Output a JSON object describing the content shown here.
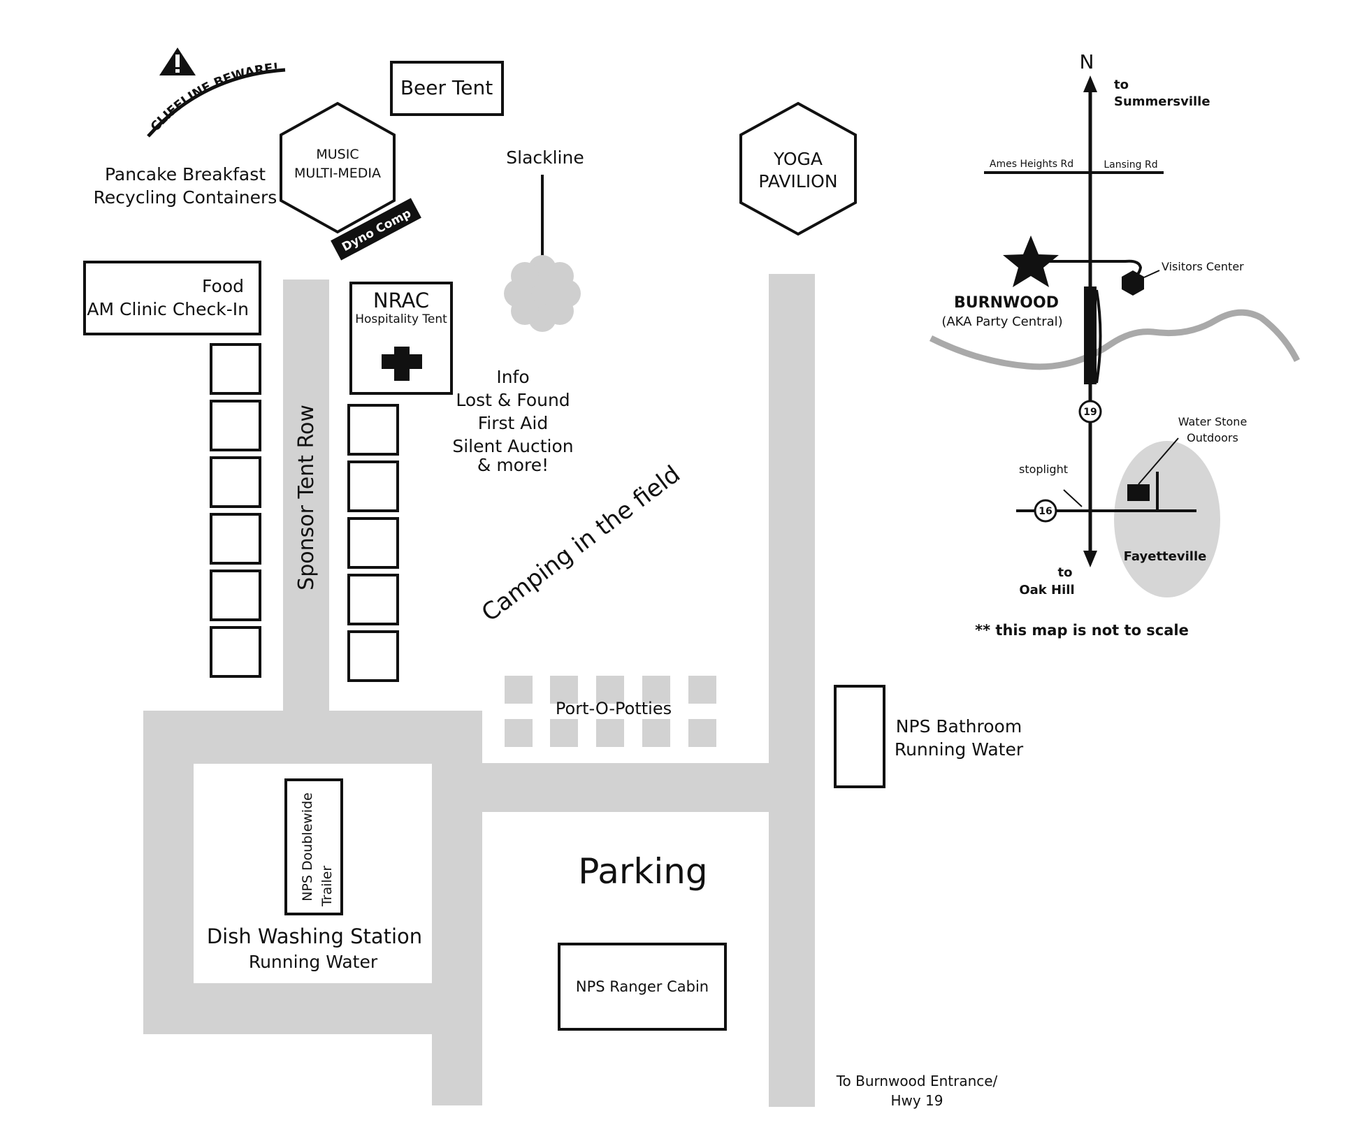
{
  "labels": {
    "cliffline": "CLIFFLINE BEWARE!",
    "beer_tent": "Beer Tent",
    "music_line1": "MUSIC",
    "music_line2": "MULTI-MEDIA",
    "dyno_comp": "Dyno Comp",
    "pancake": "Pancake Breakfast",
    "recycling": "Recycling Containers",
    "slackline": "Slackline",
    "yoga_line1": "YOGA",
    "yoga_line2": "PAVILION",
    "food": "Food",
    "am_clinic": "AM Clinic Check-In",
    "nrac": "NRAC",
    "hospitality": "Hospitality Tent",
    "info": "Info",
    "lost_found": "Lost & Found",
    "first_aid": "First Aid",
    "silent_auction": "Silent Auction",
    "and_more": "& more!",
    "sponsor_row": "Sponsor Tent Row",
    "camping": "Camping in the field",
    "port_o_potties": "Port-O-Potties",
    "nps_bathroom": "NPS Bathroom",
    "running_water_1": "Running Water",
    "doublewide_line1": "NPS Doublewide",
    "doublewide_line2": "Trailer",
    "dish_washing": "Dish Washing Station",
    "running_water_2": "Running Water",
    "parking": "Parking",
    "ranger_cabin": "NPS Ranger Cabin",
    "entrance_line1": "To Burnwood Entrance/",
    "entrance_line2": "Hwy 19"
  },
  "inset": {
    "north": "N",
    "to_summersville_1": "to",
    "to_summersville_2": "Summersville",
    "ames_heights": "Ames Heights Rd",
    "lansing": "Lansing Rd",
    "visitors_center": "Visitors Center",
    "burnwood": "BURNWOOD",
    "burnwood_aka": "(AKA Party Central)",
    "route_19": "19",
    "water_stone_1": "Water Stone",
    "water_stone_2": "Outdoors",
    "stoplight": "stoplight",
    "route_16": "16",
    "fayetteville": "Fayetteville",
    "to_oak_hill_1": "to",
    "to_oak_hill_2": "Oak Hill",
    "not_to_scale": "** this map is not to scale"
  },
  "colors": {
    "road": "#d2d2d2",
    "ink": "#111111",
    "river": "#a9a9a9",
    "fayetteville_area": "#d6d6d6"
  }
}
